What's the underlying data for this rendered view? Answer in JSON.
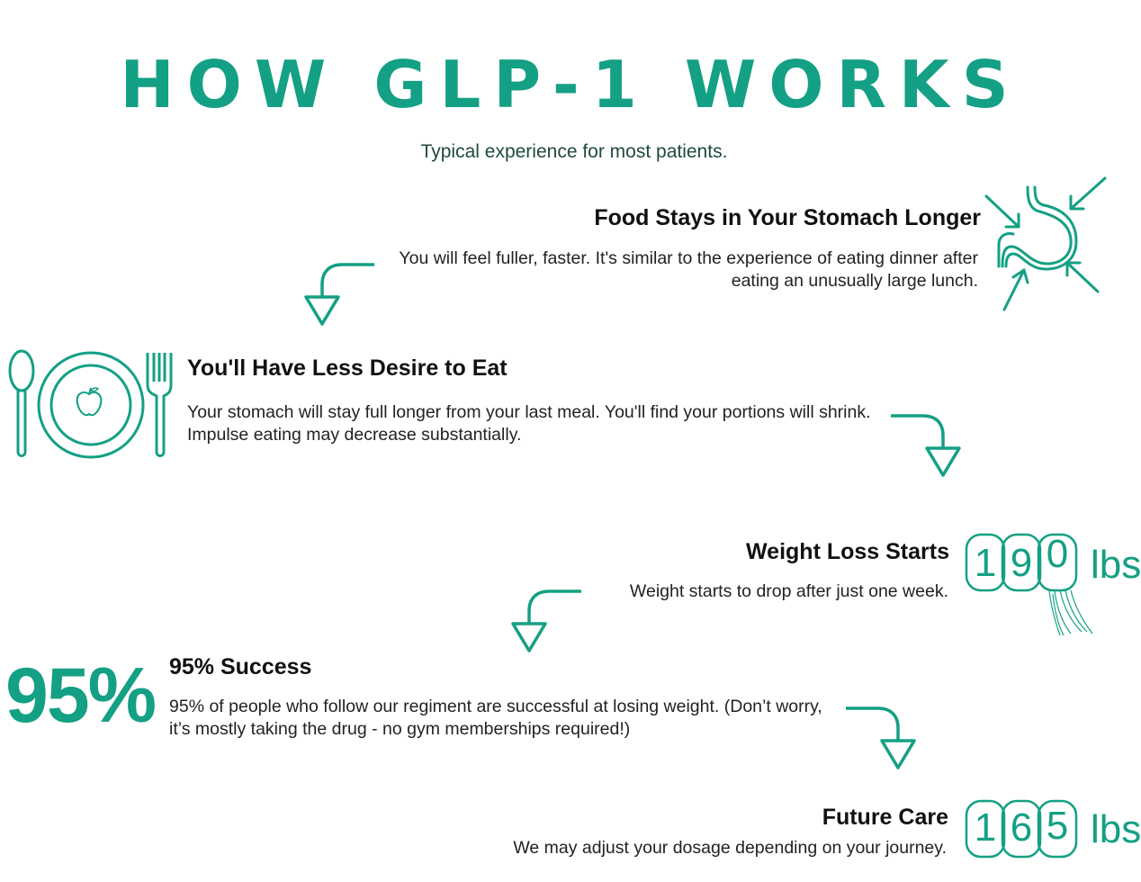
{
  "title": "HOW GLP-1 WORKS",
  "subtitle": "Typical experience for most patients.",
  "steps": [
    {
      "heading": "Food Stays in Your Stomach Longer",
      "body": "You will feel fuller, faster. It's similar to the experience of eating dinner after eating an unusually large lunch."
    },
    {
      "heading": "You'll Have Less Desire to Eat",
      "body": "Your stomach will stay full longer from your last meal. You'll find your portions will shrink. Impulse eating may decrease substantially."
    },
    {
      "heading": "Weight Loss Starts",
      "body": "Weight starts to drop after just one week."
    },
    {
      "heading": "95% Success",
      "body": "95% of people who follow our regiment are successful at losing weight. (Don’t worry, it’s mostly taking the drug - no gym memberships required!)"
    },
    {
      "heading": "Future Care",
      "body": "We may adjust your dosage depending on your journey."
    }
  ],
  "success_stat": "95%",
  "counters": [
    {
      "digits": [
        "1",
        "9",
        "0"
      ],
      "unit": "lbs"
    },
    {
      "digits": [
        "1",
        "6",
        "5"
      ],
      "unit": "lbs"
    }
  ],
  "icons": {
    "stomach": "stomach-icon",
    "plate": "plate-with-cutlery-icon",
    "arrow": "curved-arrow-down-icon",
    "scale_counter": "weight-counter-icon"
  },
  "colors": {
    "accent": "#14a084",
    "subtitle": "#1f4a3a",
    "text": "#111111"
  }
}
